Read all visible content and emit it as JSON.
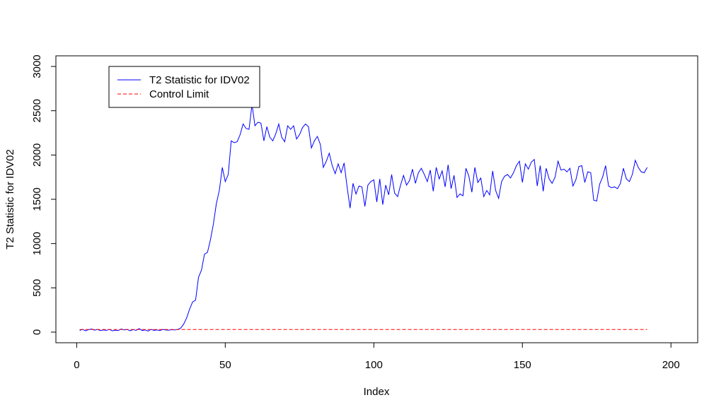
{
  "chart_data": {
    "type": "line",
    "title": "",
    "xlabel": "Index",
    "ylabel": "T2 Statistic for IDV02",
    "xlim": [
      -7,
      209
    ],
    "ylim": [
      -120,
      3120
    ],
    "x_ticks": [
      0,
      50,
      100,
      150,
      200
    ],
    "y_ticks": [
      0,
      500,
      1000,
      1500,
      2000,
      2500,
      3000
    ],
    "x_tick_labels": [
      "0",
      "50",
      "100",
      "150",
      "200"
    ],
    "y_tick_labels": [
      "0",
      "500",
      "1000",
      "1500",
      "2000",
      "2500",
      "3000"
    ],
    "grid": false,
    "legend_position": "top-left",
    "series": [
      {
        "name": "T2 Statistic for IDV02",
        "color": "#0000ff",
        "dash": "solid",
        "x_start": 1,
        "values": [
          20,
          30,
          15,
          28,
          35,
          22,
          30,
          18,
          25,
          20,
          30,
          15,
          22,
          18,
          35,
          25,
          30,
          15,
          28,
          20,
          40,
          18,
          25,
          12,
          30,
          20,
          25,
          18,
          30,
          25,
          22,
          28,
          25,
          30,
          45,
          90,
          160,
          260,
          340,
          360,
          620,
          700,
          880,
          900,
          1040,
          1220,
          1450,
          1600,
          1860,
          1700,
          1780,
          2160,
          2140,
          2150,
          2230,
          2350,
          2300,
          2290,
          2570,
          2330,
          2370,
          2360,
          2160,
          2320,
          2200,
          2160,
          2240,
          2350,
          2200,
          2150,
          2330,
          2290,
          2330,
          2180,
          2230,
          2310,
          2350,
          2320,
          2080,
          2160,
          2210,
          2120,
          1860,
          1930,
          2020,
          1880,
          1790,
          1900,
          1800,
          1910,
          1640,
          1400,
          1680,
          1560,
          1650,
          1640,
          1420,
          1660,
          1700,
          1720,
          1470,
          1730,
          1440,
          1660,
          1550,
          1780,
          1570,
          1530,
          1660,
          1770,
          1660,
          1710,
          1840,
          1680,
          1800,
          1850,
          1780,
          1700,
          1830,
          1590,
          1860,
          1730,
          1820,
          1640,
          1890,
          1620,
          1770,
          1520,
          1560,
          1540,
          1850,
          1760,
          1580,
          1860,
          1690,
          1740,
          1530,
          1600,
          1550,
          1820,
          1600,
          1510,
          1700,
          1760,
          1780,
          1740,
          1800,
          1880,
          1930,
          1690,
          1900,
          1840,
          1920,
          1950,
          1650,
          1880,
          1590,
          1850,
          1730,
          1680,
          1750,
          1930,
          1830,
          1840,
          1810,
          1850,
          1650,
          1720,
          1870,
          1880,
          1690,
          1810,
          1800,
          1490,
          1480,
          1670,
          1750,
          1880,
          1650,
          1630,
          1640,
          1620,
          1680,
          1850,
          1730,
          1700,
          1780,
          1940,
          1860,
          1810,
          1800,
          1860
        ]
      },
      {
        "name": "Control Limit",
        "color": "#ff0000",
        "dash": "dashed",
        "x_range": [
          1,
          192
        ],
        "constant": 30
      }
    ]
  }
}
